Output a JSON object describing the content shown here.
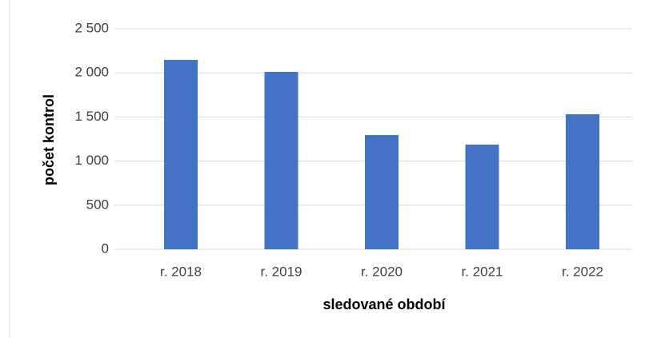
{
  "chart_data": {
    "type": "bar",
    "categories": [
      "r. 2018",
      "r. 2019",
      "r. 2020",
      "r. 2021",
      "r. 2022"
    ],
    "values": [
      2147,
      2011,
      1295,
      1187,
      1531
    ],
    "color": "#4472c4",
    "x_label": "sledované období",
    "y_label": "počet kontrol",
    "ylim": [
      0,
      2500
    ],
    "yticks": [
      0,
      500,
      {
        "value": 1000,
        "label": "1 000"
      },
      {
        "value": 1500,
        "label": "1 500"
      },
      {
        "value": 2000,
        "label": "2 000"
      },
      {
        "value": 2500,
        "label": "2 500"
      }
    ],
    "grid": true
  }
}
